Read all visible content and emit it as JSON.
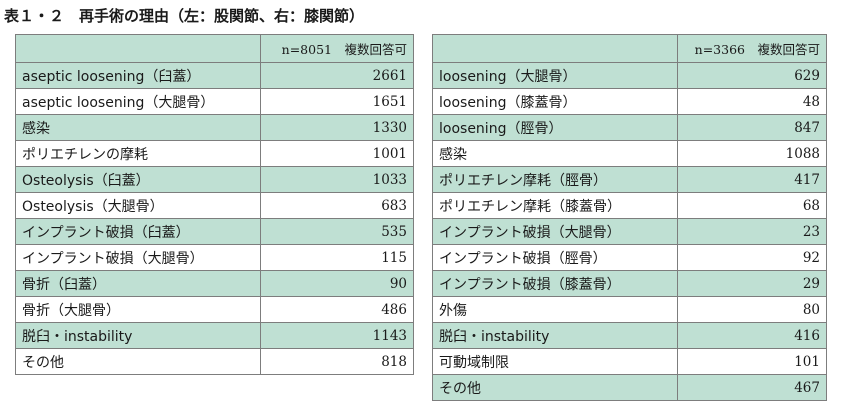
{
  "title": "表１・２　再手術の理由（左：股関節、右：膝関節）",
  "left_table": {
    "header_value": "n=8051　複数回答可",
    "rows": [
      {
        "label": "aseptic loosening（臼蓋）",
        "value": "2661"
      },
      {
        "label": "aseptic loosening（大腿骨）",
        "value": "1651"
      },
      {
        "label": "感染",
        "value": "1330"
      },
      {
        "label": "ポリエチレンの摩耗",
        "value": "1001"
      },
      {
        "label": "Osteolysis（臼蓋）",
        "value": "1033"
      },
      {
        "label": "Osteolysis（大腿骨）",
        "value": "683"
      },
      {
        "label": "インプラント破損（臼蓋）",
        "value": "535"
      },
      {
        "label": "インプラント破損（大腿骨）",
        "value": "115"
      },
      {
        "label": "骨折（臼蓋）",
        "value": "90"
      },
      {
        "label": "骨折（大腿骨）",
        "value": "486"
      },
      {
        "label": "脱臼・instability",
        "value": "1143"
      },
      {
        "label": "その他",
        "value": "818"
      }
    ]
  },
  "right_table": {
    "header_value": "n=3366　複数回答可",
    "rows": [
      {
        "label": "loosening（大腿骨）",
        "value": "629"
      },
      {
        "label": "loosening（膝蓋骨）",
        "value": "48"
      },
      {
        "label": "loosening（脛骨）",
        "value": "847"
      },
      {
        "label": "感染",
        "value": "1088"
      },
      {
        "label": "ポリエチレン摩耗（脛骨）",
        "value": "417"
      },
      {
        "label": "ポリエチレン摩耗（膝蓋骨）",
        "value": "68"
      },
      {
        "label": "インプラント破損（大腿骨）",
        "value": "23"
      },
      {
        "label": "インプラント破損（脛骨）",
        "value": "92"
      },
      {
        "label": "インプラント破損（膝蓋骨）",
        "value": "29"
      },
      {
        "label": "外傷",
        "value": "80"
      },
      {
        "label": "脱臼・instability",
        "value": "416"
      },
      {
        "label": "可動域制限",
        "value": "101"
      },
      {
        "label": "その他",
        "value": "467"
      }
    ]
  },
  "colors": {
    "row_shade": "#bfe0d3",
    "row_plain": "#ffffff",
    "border": "#7d7d7d"
  }
}
